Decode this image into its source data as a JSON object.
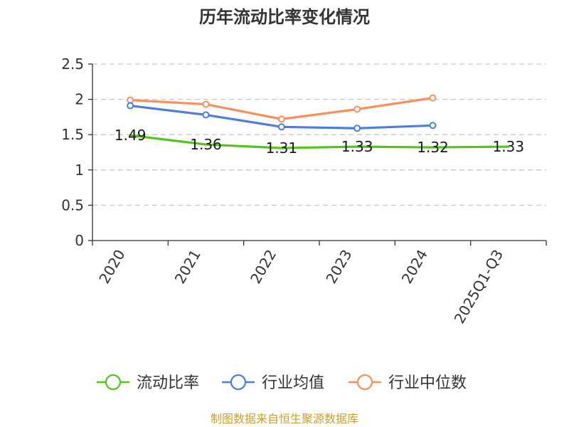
{
  "chart_data": {
    "type": "line",
    "title": "历年流动比率变化情况",
    "categories": [
      "2020",
      "2021",
      "2022",
      "2023",
      "2024",
      "2025Q1-Q3"
    ],
    "ylim": [
      0,
      2.5
    ],
    "yticks": [
      "0",
      "0.5",
      "1",
      "1.5",
      "2",
      "2.5"
    ],
    "ytick_values": [
      0,
      0.5,
      1,
      1.5,
      2,
      2.5
    ],
    "grid": true,
    "legend_position": "bottom",
    "series": [
      {
        "name": "流动比率",
        "color": "#52c41a",
        "values": [
          1.49,
          1.36,
          1.31,
          1.33,
          1.32,
          1.33
        ],
        "labels": [
          "1.49",
          "1.36",
          "1.31",
          "1.33",
          "1.32",
          "1.33"
        ],
        "show_markers": false,
        "show_labels": true
      },
      {
        "name": "行业均值",
        "color": "#4a7fdc",
        "values": [
          1.91,
          1.78,
          1.61,
          1.59,
          1.63,
          null
        ],
        "show_markers": true,
        "show_labels": false
      },
      {
        "name": "行业中位数",
        "color": "#f7915b",
        "values": [
          1.99,
          1.93,
          1.72,
          1.86,
          2.02,
          null
        ],
        "show_markers": true,
        "show_labels": false
      }
    ]
  },
  "footer": {
    "source": "制图数据来自恒生聚源数据库"
  }
}
